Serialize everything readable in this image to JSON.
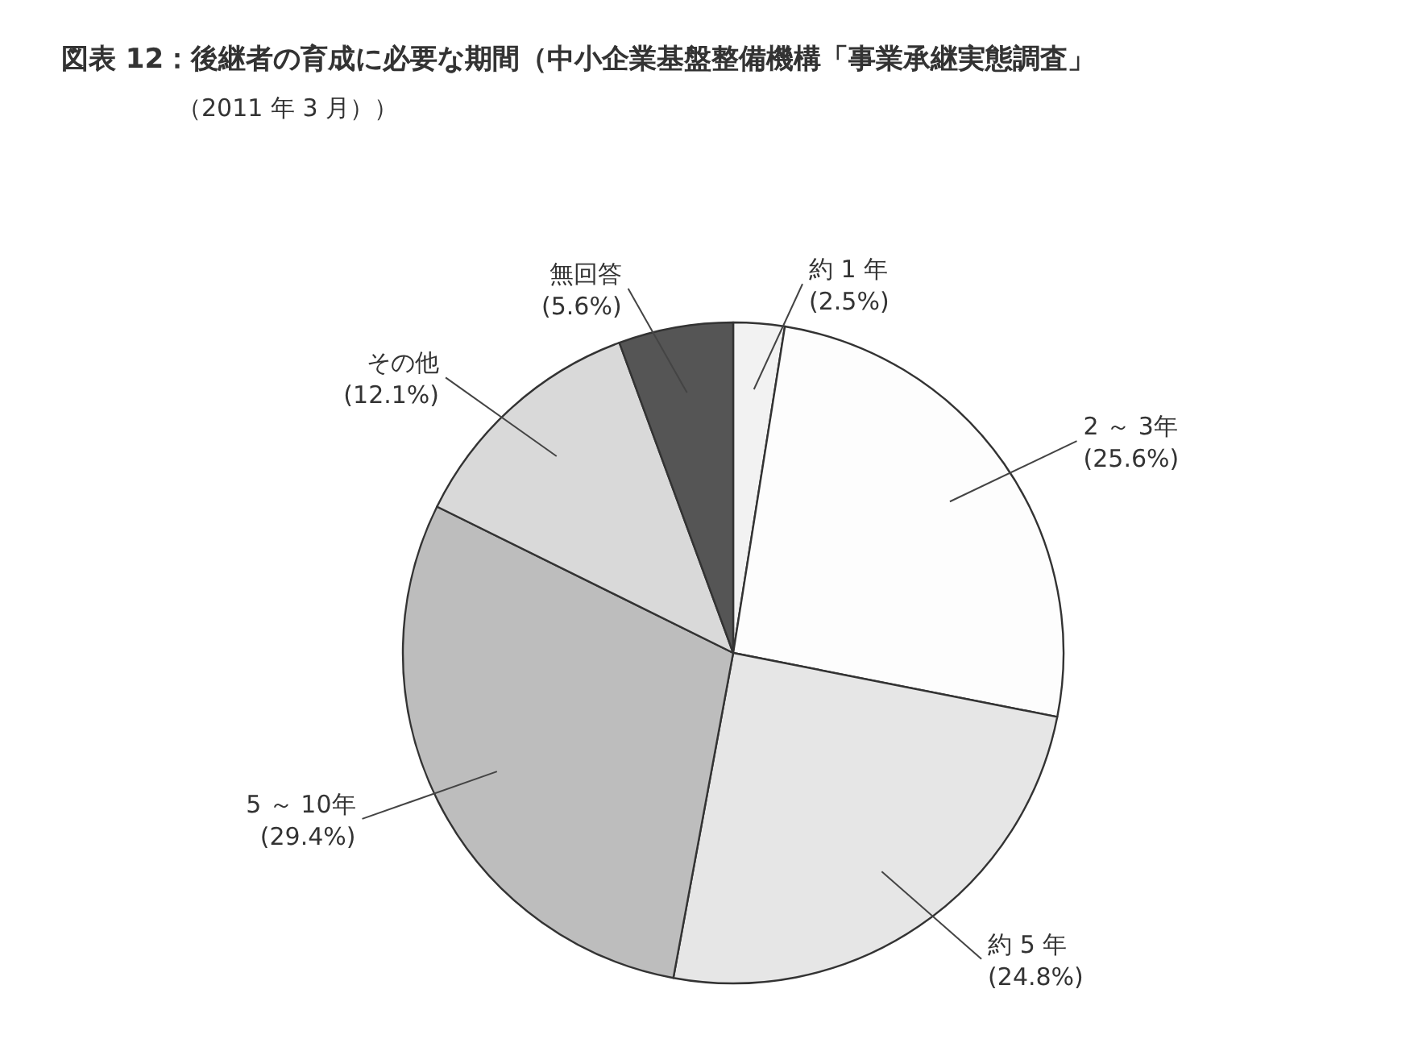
{
  "chart_data": {
    "type": "pie",
    "title": "図表 12：後継者の育成に必要な期間（中小企業基盤整備機構「事業承継実態調査」",
    "subtitle": "（2011 年 3 月））",
    "categories": [
      "約 1 年",
      "2 ～ 3年",
      "約 5 年",
      "5 ～ 10年",
      "その他",
      "無回答"
    ],
    "values": [
      2.5,
      25.6,
      24.8,
      29.4,
      12.1,
      5.6
    ],
    "value_labels": [
      "(2.5%)",
      "(25.6%)",
      "(24.8%)",
      "(29.4%)",
      "(12.1%)",
      "(5.6%)"
    ],
    "colors": [
      "#f2f2f2",
      "#fdfdfd",
      "#e6e6e6",
      "#bdbdbd",
      "#d9d9d9",
      "#555555"
    ]
  }
}
